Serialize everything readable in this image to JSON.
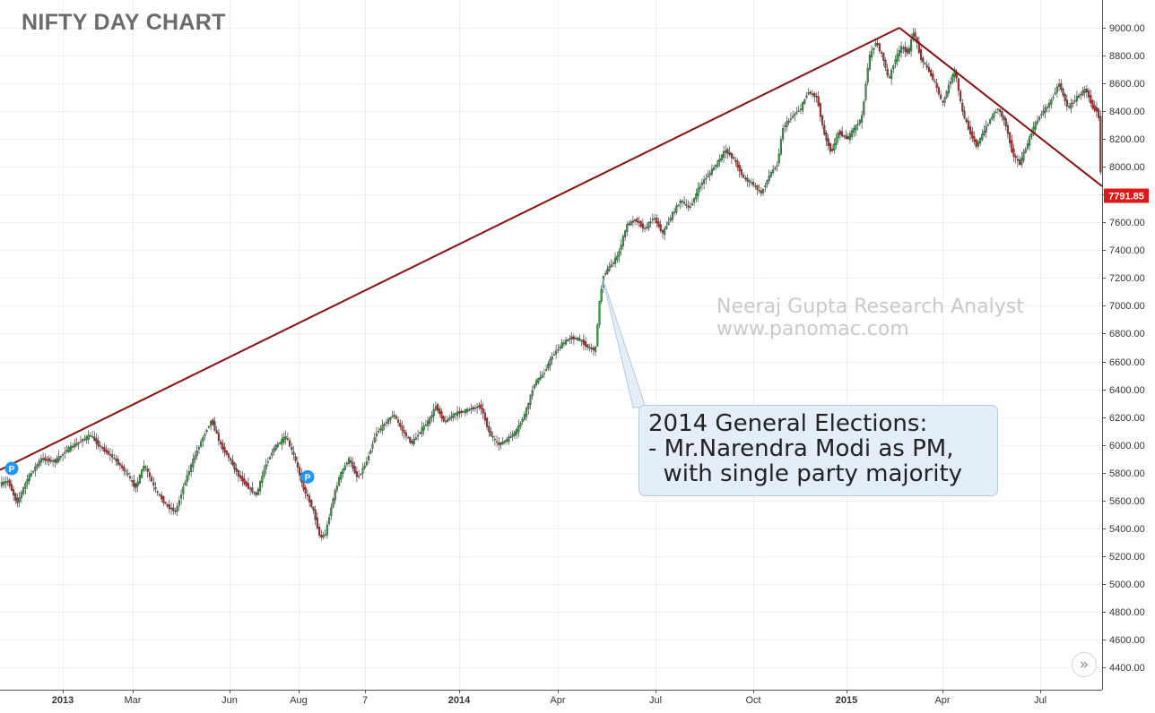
{
  "chart_data": {
    "type": "candlestick",
    "title": "NIFTY DAY CHART",
    "watermark": [
      "Neeraj Gupta Research Analyst",
      "www.panomac.com"
    ],
    "annotation": {
      "lines": [
        "2014 General Elections:",
        "- Mr.Narendra Modi as PM,",
        "  with single party majority"
      ],
      "points_to": {
        "date": "May 2014",
        "price": 7200
      }
    },
    "last_price": "7791.85",
    "ylim": [
      4300,
      9150
    ],
    "y_ticks": [
      "9000.00",
      "8800.00",
      "8600.00",
      "8400.00",
      "8200.00",
      "8000.00",
      "7800.00",
      "7600.00",
      "7400.00",
      "7200.00",
      "7000.00",
      "6800.00",
      "6600.00",
      "6400.00",
      "6200.00",
      "6000.00",
      "5800.00",
      "5600.00",
      "5400.00",
      "5200.00",
      "5000.00",
      "4800.00",
      "4600.00",
      "4400.00"
    ],
    "x_ticks": [
      {
        "label": "2013",
        "bold": true,
        "pos": 70
      },
      {
        "label": "Mar",
        "bold": false,
        "pos": 148
      },
      {
        "label": "Jun",
        "bold": false,
        "pos": 256
      },
      {
        "label": "Aug",
        "bold": false,
        "pos": 333
      },
      {
        "label": "7",
        "bold": false,
        "pos": 407
      },
      {
        "label": "2014",
        "bold": true,
        "pos": 512
      },
      {
        "label": "Apr",
        "bold": false,
        "pos": 622
      },
      {
        "label": "Jul",
        "bold": false,
        "pos": 731
      },
      {
        "label": "Oct",
        "bold": false,
        "pos": 840
      },
      {
        "label": "2015",
        "bold": true,
        "pos": 944
      },
      {
        "label": "Apr",
        "bold": false,
        "pos": 1051
      },
      {
        "label": "Jul",
        "bold": false,
        "pos": 1160
      }
    ],
    "price_path": [
      [
        0,
        5720
      ],
      [
        8,
        5740
      ],
      [
        18,
        5580
      ],
      [
        30,
        5760
      ],
      [
        45,
        5900
      ],
      [
        60,
        5880
      ],
      [
        75,
        5970
      ],
      [
        90,
        6030
      ],
      [
        100,
        6070
      ],
      [
        110,
        5990
      ],
      [
        125,
        5910
      ],
      [
        140,
        5800
      ],
      [
        150,
        5690
      ],
      [
        160,
        5860
      ],
      [
        172,
        5680
      ],
      [
        185,
        5560
      ],
      [
        195,
        5520
      ],
      [
        205,
        5730
      ],
      [
        215,
        5900
      ],
      [
        225,
        6050
      ],
      [
        235,
        6180
      ],
      [
        245,
        6000
      ],
      [
        255,
        5900
      ],
      [
        265,
        5780
      ],
      [
        275,
        5700
      ],
      [
        285,
        5640
      ],
      [
        295,
        5850
      ],
      [
        305,
        5980
      ],
      [
        318,
        6060
      ],
      [
        328,
        5900
      ],
      [
        338,
        5680
      ],
      [
        348,
        5540
      ],
      [
        356,
        5330
      ],
      [
        362,
        5360
      ],
      [
        370,
        5600
      ],
      [
        378,
        5780
      ],
      [
        388,
        5900
      ],
      [
        398,
        5760
      ],
      [
        408,
        5880
      ],
      [
        418,
        6080
      ],
      [
        428,
        6150
      ],
      [
        438,
        6220
      ],
      [
        448,
        6100
      ],
      [
        458,
        6010
      ],
      [
        468,
        6100
      ],
      [
        478,
        6180
      ],
      [
        485,
        6280
      ],
      [
        495,
        6160
      ],
      [
        505,
        6220
      ],
      [
        515,
        6240
      ],
      [
        525,
        6260
      ],
      [
        535,
        6280
      ],
      [
        545,
        6080
      ],
      [
        555,
        6000
      ],
      [
        565,
        6040
      ],
      [
        575,
        6100
      ],
      [
        585,
        6230
      ],
      [
        595,
        6440
      ],
      [
        605,
        6510
      ],
      [
        615,
        6640
      ],
      [
        625,
        6720
      ],
      [
        635,
        6770
      ],
      [
        645,
        6760
      ],
      [
        655,
        6700
      ],
      [
        663,
        6680
      ],
      [
        667,
        7000
      ],
      [
        672,
        7220
      ],
      [
        680,
        7290
      ],
      [
        688,
        7360
      ],
      [
        698,
        7580
      ],
      [
        708,
        7620
      ],
      [
        718,
        7550
      ],
      [
        728,
        7640
      ],
      [
        738,
        7520
      ],
      [
        748,
        7650
      ],
      [
        758,
        7760
      ],
      [
        768,
        7700
      ],
      [
        780,
        7870
      ],
      [
        790,
        7950
      ],
      [
        798,
        8020
      ],
      [
        808,
        8120
      ],
      [
        818,
        8050
      ],
      [
        828,
        7920
      ],
      [
        838,
        7880
      ],
      [
        848,
        7810
      ],
      [
        858,
        7950
      ],
      [
        866,
        8020
      ],
      [
        872,
        8280
      ],
      [
        882,
        8360
      ],
      [
        892,
        8420
      ],
      [
        900,
        8540
      ],
      [
        910,
        8500
      ],
      [
        918,
        8240
      ],
      [
        926,
        8100
      ],
      [
        934,
        8250
      ],
      [
        944,
        8200
      ],
      [
        952,
        8280
      ],
      [
        960,
        8350
      ],
      [
        968,
        8780
      ],
      [
        976,
        8900
      ],
      [
        984,
        8780
      ],
      [
        990,
        8620
      ],
      [
        996,
        8750
      ],
      [
        1004,
        8860
      ],
      [
        1012,
        8820
      ],
      [
        1018,
        8980
      ],
      [
        1026,
        8780
      ],
      [
        1034,
        8700
      ],
      [
        1042,
        8600
      ],
      [
        1050,
        8450
      ],
      [
        1058,
        8600
      ],
      [
        1064,
        8700
      ],
      [
        1072,
        8400
      ],
      [
        1080,
        8260
      ],
      [
        1088,
        8150
      ],
      [
        1096,
        8250
      ],
      [
        1104,
        8350
      ],
      [
        1112,
        8420
      ],
      [
        1120,
        8320
      ],
      [
        1128,
        8100
      ],
      [
        1136,
        8020
      ],
      [
        1144,
        8150
      ],
      [
        1152,
        8290
      ],
      [
        1160,
        8380
      ],
      [
        1170,
        8460
      ],
      [
        1180,
        8600
      ],
      [
        1190,
        8420
      ],
      [
        1200,
        8500
      ],
      [
        1210,
        8560
      ],
      [
        1218,
        8420
      ],
      [
        1224,
        8400
      ],
      [
        1226,
        7990
      ],
      [
        1229,
        7792
      ]
    ],
    "trendlines": [
      {
        "from": {
          "x": 0,
          "price": 5820
        },
        "to": {
          "x": 1003,
          "price": 9000
        }
      },
      {
        "from": {
          "x": 1003,
          "price": 9000
        },
        "to": {
          "x": 1229,
          "price": 7860
        }
      }
    ],
    "markers": [
      {
        "label": "P",
        "x": 13,
        "price": 5830
      },
      {
        "label": "P",
        "x": 343,
        "price": 5770
      }
    ],
    "colors": {
      "up": "#2e9e3e",
      "down": "#b52b2b",
      "trend": "#8b1111",
      "marker": "#2196f3",
      "last_price_bg": "#e01818",
      "grid": "#f0f0f0"
    }
  },
  "controls": {
    "scroll_right_label": "»"
  }
}
